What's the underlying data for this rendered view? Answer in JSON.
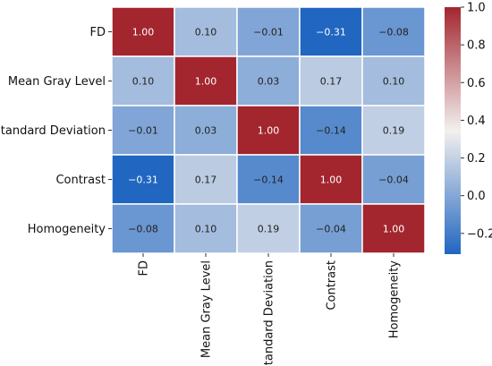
{
  "chart_data": {
    "type": "heatmap",
    "title": "",
    "xlabel": "",
    "ylabel": "",
    "x_categories": [
      "FD",
      "Mean Gray Level",
      "Standard Deviation",
      "Contrast",
      "Homogeneity"
    ],
    "y_categories": [
      "FD",
      "Mean Gray Level",
      "Standard Deviation",
      "Contrast",
      "Homogeneity"
    ],
    "values": [
      [
        1.0,
        0.1,
        -0.01,
        -0.31,
        -0.08
      ],
      [
        0.1,
        1.0,
        0.03,
        0.17,
        0.1
      ],
      [
        -0.01,
        0.03,
        1.0,
        -0.14,
        0.19
      ],
      [
        -0.31,
        0.17,
        -0.14,
        1.0,
        -0.04
      ],
      [
        -0.08,
        0.1,
        0.19,
        -0.04,
        1.0
      ]
    ],
    "value_format": "0.00",
    "colormap": "vlag",
    "color_low": "#2166c0",
    "color_mid": "#f2f0ef",
    "color_high": "#a3262f",
    "vmin": -0.31,
    "vmax": 1.0,
    "colorbar_ticks": [
      "1.0",
      "0.8",
      "0.6",
      "0.4",
      "0.2",
      "0.0",
      "−0.2"
    ],
    "colorbar_tick_values": [
      1.0,
      0.8,
      0.6,
      0.4,
      0.2,
      0.0,
      -0.2
    ],
    "cell_border_color": "#ffffff",
    "text_color_dark": "#222222",
    "text_color_light": "#ffffff"
  }
}
